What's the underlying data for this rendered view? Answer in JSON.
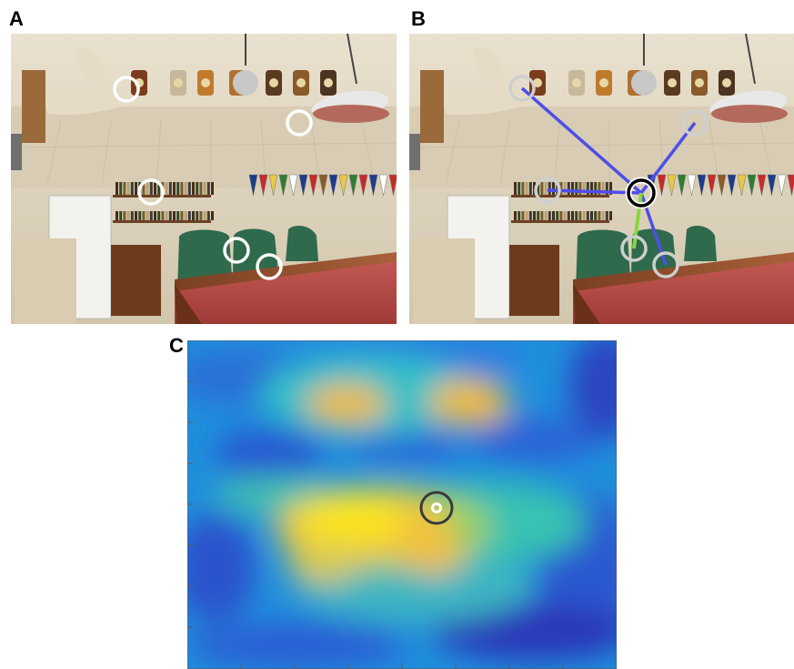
{
  "figure": {
    "panels": [
      {
        "id": "a",
        "label": "A"
      },
      {
        "id": "b",
        "label": "B"
      },
      {
        "id": "c",
        "label": "C"
      }
    ]
  },
  "scene": {
    "pennant_colors": [
      "#1d3b8a",
      "#c72a2a",
      "#e8c845",
      "#2e7d32",
      "#ffffff",
      "#1d3b8a",
      "#c72a2a",
      "#8b5a2b",
      "#1d3b8a",
      "#e8c845",
      "#2e7d32",
      "#c72a2a",
      "#1d3b8a",
      "#ffffff",
      "#c72a2a"
    ]
  },
  "colors": {
    "fixation_ring_a": "#ffffff",
    "fixation_ring_b": "#cfcfcf",
    "saccade_line": "#4e4ee8",
    "saccade_line_short": "#86d83a",
    "central_ring": "#000000",
    "heatmap_low": "#2a39b8",
    "heatmap_high": "#fbe41f"
  }
}
